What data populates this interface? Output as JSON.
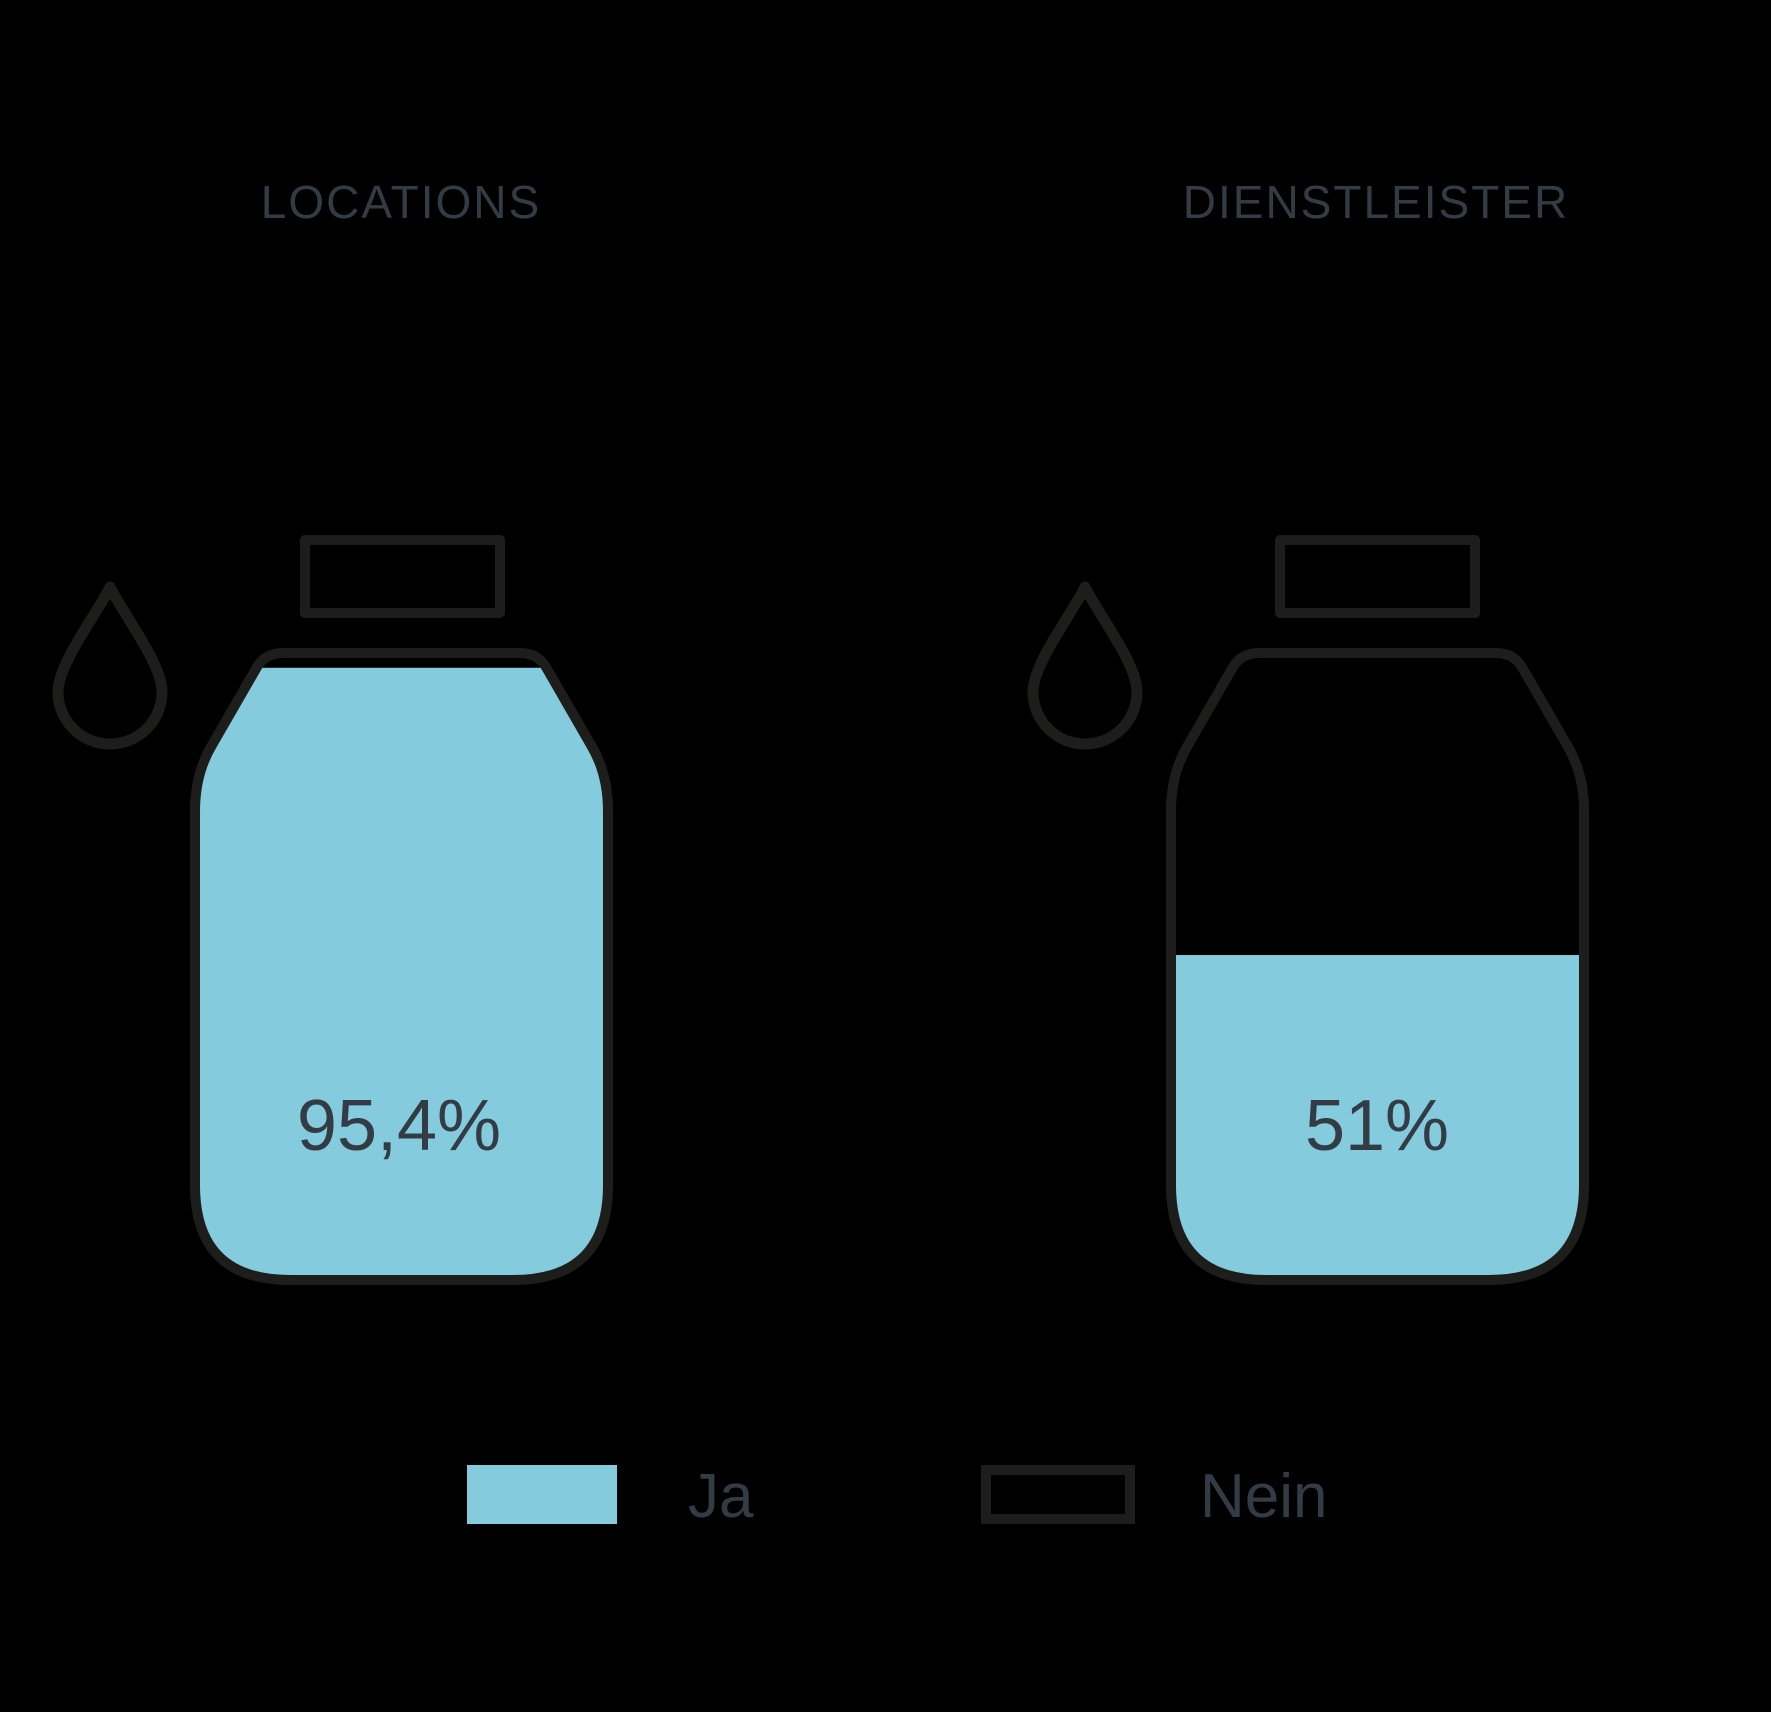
{
  "panels": [
    {
      "title": "LOCATIONS",
      "value": 95.4,
      "value_label": "95,4%"
    },
    {
      "title": "DIENSTLEISTER",
      "value": 51,
      "value_label": "51%"
    }
  ],
  "legend": {
    "yes_label": "Ja",
    "no_label": "Nein"
  },
  "colors": {
    "fill": "#84cbdd",
    "outline": "#1d1d1b",
    "text": "#333b44",
    "background": "#000000"
  },
  "chart_data": {
    "type": "bar",
    "subtype": "pictorial-bottle-fill",
    "categories": [
      "LOCATIONS",
      "DIENSTLEISTER"
    ],
    "values": [
      95.4,
      51
    ],
    "value_labels": [
      "95,4%",
      "51%"
    ],
    "unit": "%",
    "ylim": [
      0,
      100
    ],
    "legend_entries": [
      {
        "label": "Ja",
        "swatch": "filled",
        "color": "#84cbdd"
      },
      {
        "label": "Nein",
        "swatch": "outline"
      }
    ],
    "legend_position": "bottom",
    "grid": false,
    "title": "",
    "xlabel": "",
    "ylabel": ""
  }
}
